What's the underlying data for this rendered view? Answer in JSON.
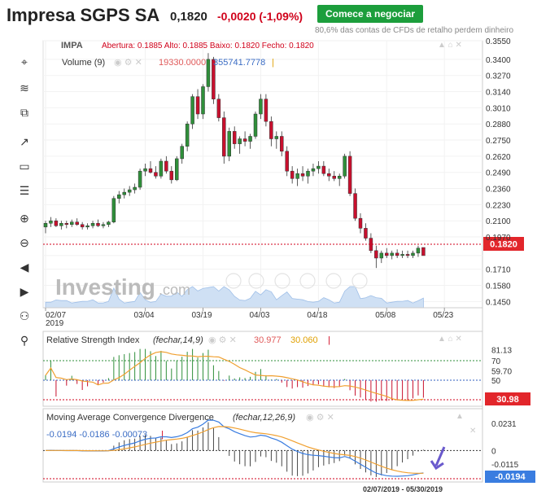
{
  "header": {
    "title": "Impresa SGPS SA",
    "price": "0,1820",
    "change": "-0,0020 (-1,09%)",
    "cta_label": "Comece a negociar",
    "disclaimer": "80,6% das contas de CFDs de retalho perdem dinheiro"
  },
  "toolbar": {
    "tools": [
      "crosshair-icon",
      "fib-tool-icon",
      "rectangle-tool-icon",
      "arrow-line-icon",
      "box-icon",
      "lines-icon",
      "zoom-in-icon",
      "zoom-out-icon",
      "back-icon",
      "forward-icon",
      "people-icon",
      "person-icon"
    ]
  },
  "main": {
    "symbol": "IMPA",
    "ohlc_text": "Abertura: 0.1885   Alto: 0.1885   Baixo: 0.1820   Fecho: 0.1820",
    "volume_label": "Volume (9)",
    "volume_val1": "19330.0000",
    "volume_val2": "355741.7778",
    "logo_text": "Investing",
    "logo_suffix": ".com",
    "price_badge": "0.1820",
    "x_ticks": [
      {
        "label": "02/07",
        "sub": "2019",
        "i": 0
      },
      {
        "label": "03/04",
        "i": 19
      },
      {
        "label": "03/19",
        "i": 30
      },
      {
        "label": "04/03",
        "i": 41
      },
      {
        "label": "04/18",
        "i": 52
      },
      {
        "label": "05/08",
        "i": 65
      },
      {
        "label": "05/23",
        "i": 76
      }
    ],
    "y_ticks": [
      "0.3550",
      "0.3400",
      "0.3270",
      "0.3140",
      "0.3010",
      "0.2880",
      "0.2750",
      "0.2620",
      "0.2490",
      "0.2360",
      "0.2230",
      "0.2100",
      "0.1970",
      "0.1820",
      "0.1710",
      "0.1580",
      "0.1450"
    ]
  },
  "rsi": {
    "label": "Relative Strength Index",
    "params": "(fechar,14,9)",
    "val1": "30.977",
    "val2": "30.060",
    "y_ticks": [
      "81.13",
      "70",
      "59.70",
      "50"
    ],
    "badge": "30.98",
    "upper": 70,
    "mid": 50,
    "lower": 30
  },
  "macd": {
    "label": "Moving Average Convergence Divergence",
    "params": "(fechar,12,26,9)",
    "vals": "-0.0194  -0.0186  -0.00073",
    "y_ticks": [
      "0.0231",
      "0",
      "-0.0115"
    ],
    "badge": "-0.0194"
  },
  "date_range": "02/07/2019 - 05/30/2019",
  "chart_data": {
    "type": "candlestick",
    "series": [
      {
        "name": "IMPA",
        "ohlc": [
          [
            0.205,
            0.21,
            0.2,
            0.208
          ],
          [
            0.208,
            0.213,
            0.205,
            0.21
          ],
          [
            0.21,
            0.212,
            0.205,
            0.206
          ],
          [
            0.206,
            0.21,
            0.203,
            0.208
          ],
          [
            0.208,
            0.21,
            0.204,
            0.207
          ],
          [
            0.207,
            0.211,
            0.205,
            0.209
          ],
          [
            0.209,
            0.212,
            0.206,
            0.207
          ],
          [
            0.207,
            0.209,
            0.203,
            0.205
          ],
          [
            0.205,
            0.208,
            0.203,
            0.206
          ],
          [
            0.206,
            0.21,
            0.204,
            0.208
          ],
          [
            0.208,
            0.211,
            0.205,
            0.206
          ],
          [
            0.206,
            0.209,
            0.204,
            0.207
          ],
          [
            0.207,
            0.21,
            0.205,
            0.209
          ],
          [
            0.209,
            0.23,
            0.208,
            0.228
          ],
          [
            0.228,
            0.234,
            0.224,
            0.231
          ],
          [
            0.231,
            0.236,
            0.228,
            0.233
          ],
          [
            0.233,
            0.238,
            0.23,
            0.235
          ],
          [
            0.235,
            0.24,
            0.232,
            0.237
          ],
          [
            0.237,
            0.252,
            0.235,
            0.25
          ],
          [
            0.25,
            0.256,
            0.246,
            0.252
          ],
          [
            0.252,
            0.258,
            0.248,
            0.249
          ],
          [
            0.249,
            0.254,
            0.244,
            0.246
          ],
          [
            0.246,
            0.26,
            0.244,
            0.258
          ],
          [
            0.258,
            0.262,
            0.248,
            0.25
          ],
          [
            0.25,
            0.254,
            0.24,
            0.243
          ],
          [
            0.243,
            0.262,
            0.242,
            0.26
          ],
          [
            0.26,
            0.272,
            0.256,
            0.27
          ],
          [
            0.27,
            0.29,
            0.266,
            0.288
          ],
          [
            0.288,
            0.312,
            0.284,
            0.31
          ],
          [
            0.31,
            0.316,
            0.292,
            0.296
          ],
          [
            0.296,
            0.32,
            0.292,
            0.318
          ],
          [
            0.318,
            0.345,
            0.314,
            0.34
          ],
          [
            0.34,
            0.342,
            0.304,
            0.308
          ],
          [
            0.308,
            0.312,
            0.29,
            0.293
          ],
          [
            0.293,
            0.298,
            0.256,
            0.262
          ],
          [
            0.262,
            0.285,
            0.258,
            0.282
          ],
          [
            0.282,
            0.286,
            0.268,
            0.272
          ],
          [
            0.272,
            0.278,
            0.264,
            0.276
          ],
          [
            0.276,
            0.282,
            0.27,
            0.274
          ],
          [
            0.274,
            0.28,
            0.268,
            0.278
          ],
          [
            0.278,
            0.298,
            0.276,
            0.296
          ],
          [
            0.296,
            0.312,
            0.292,
            0.308
          ],
          [
            0.308,
            0.312,
            0.286,
            0.29
          ],
          [
            0.29,
            0.294,
            0.27,
            0.276
          ],
          [
            0.276,
            0.282,
            0.268,
            0.278
          ],
          [
            0.278,
            0.282,
            0.262,
            0.266
          ],
          [
            0.266,
            0.27,
            0.246,
            0.25
          ],
          [
            0.25,
            0.254,
            0.24,
            0.244
          ],
          [
            0.244,
            0.252,
            0.238,
            0.248
          ],
          [
            0.248,
            0.254,
            0.242,
            0.246
          ],
          [
            0.246,
            0.252,
            0.24,
            0.25
          ],
          [
            0.25,
            0.256,
            0.246,
            0.252
          ],
          [
            0.252,
            0.258,
            0.248,
            0.254
          ],
          [
            0.254,
            0.258,
            0.246,
            0.248
          ],
          [
            0.248,
            0.252,
            0.242,
            0.246
          ],
          [
            0.246,
            0.25,
            0.242,
            0.244
          ],
          [
            0.244,
            0.248,
            0.238,
            0.246
          ],
          [
            0.246,
            0.264,
            0.244,
            0.262
          ],
          [
            0.262,
            0.266,
            0.23,
            0.232
          ],
          [
            0.232,
            0.236,
            0.21,
            0.212
          ],
          [
            0.212,
            0.216,
            0.2,
            0.204
          ],
          [
            0.204,
            0.208,
            0.194,
            0.196
          ],
          [
            0.196,
            0.2,
            0.184,
            0.186
          ],
          [
            0.186,
            0.19,
            0.172,
            0.18
          ],
          [
            0.18,
            0.186,
            0.176,
            0.184
          ],
          [
            0.184,
            0.188,
            0.18,
            0.182
          ],
          [
            0.182,
            0.186,
            0.179,
            0.184
          ],
          [
            0.184,
            0.187,
            0.18,
            0.182
          ],
          [
            0.182,
            0.186,
            0.18,
            0.183
          ],
          [
            0.183,
            0.186,
            0.18,
            0.182
          ],
          [
            0.182,
            0.186,
            0.18,
            0.184
          ],
          [
            0.184,
            0.19,
            0.181,
            0.188
          ],
          [
            0.1885,
            0.1885,
            0.182,
            0.182
          ]
        ]
      }
    ],
    "volume_range": [
      0,
      400000
    ],
    "ylim": [
      0.14,
      0.355
    ]
  }
}
